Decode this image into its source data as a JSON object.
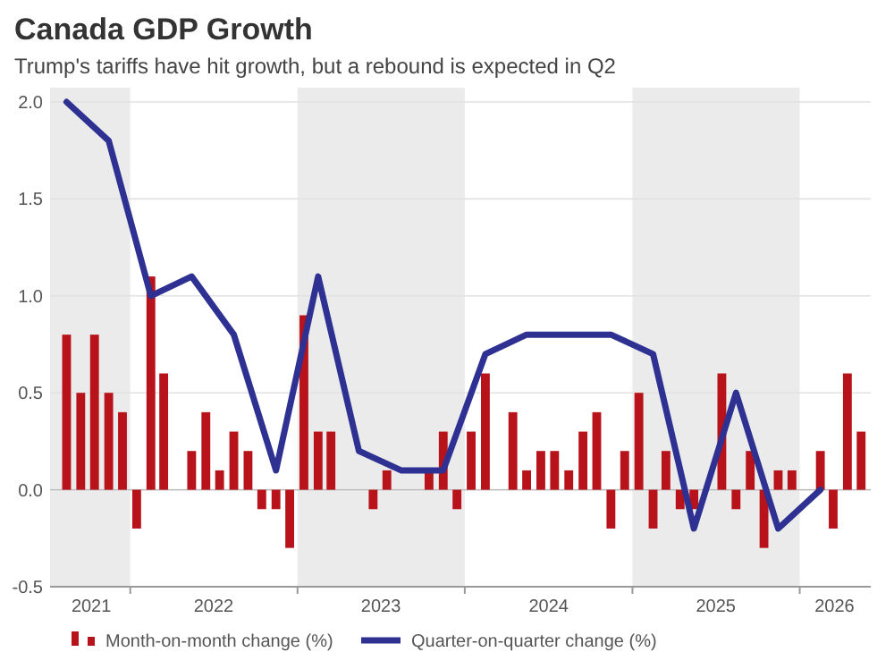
{
  "chart_data": {
    "type": "bar",
    "title": "Canada GDP Growth",
    "subtitle": "Trump's tariffs have hit growth, but a rebound is expected in Q2",
    "x": [
      "2021-08-15",
      "2021-09-15",
      "2021-10-15",
      "2021-11-15",
      "2021-12-15",
      "2022-01-15",
      "2022-02-15",
      "2022-03-15",
      "2022-04-15",
      "2022-05-15",
      "2022-06-15",
      "2022-07-15",
      "2022-08-15",
      "2022-09-15",
      "2022-10-15",
      "2022-11-15",
      "2022-12-15",
      "2023-01-15",
      "2023-02-15",
      "2023-03-15",
      "2023-04-15",
      "2023-05-15",
      "2023-06-15",
      "2023-07-15",
      "2023-08-15",
      "2023-09-15",
      "2023-10-15",
      "2023-11-15",
      "2023-12-15",
      "2024-01-15",
      "2024-02-15",
      "2024-03-15",
      "2024-04-15",
      "2024-05-15",
      "2024-06-15",
      "2024-07-15",
      "2024-08-15",
      "2024-09-15",
      "2024-10-15",
      "2024-11-15",
      "2024-12-15",
      "2025-01-15",
      "2025-02-15",
      "2025-03-15",
      "2025-04-15",
      "2025-05-15",
      "2025-06-15",
      "2025-07-15",
      "2025-08-15",
      "2025-09-15",
      "2025-10-15",
      "2025-11-15",
      "2025-12-15",
      "2026-01-15",
      "2026-02-15",
      "2026-03-15",
      "2026-04-15",
      "2026-05-15"
    ],
    "series": [
      {
        "name": "Month-on-month change (%)",
        "color": "#b8121b",
        "values": [
          0.8,
          0.5,
          0.8,
          0.5,
          0.4,
          -0.2,
          1.1,
          0.6,
          0.0,
          0.2,
          0.4,
          0.1,
          0.3,
          0.2,
          -0.1,
          -0.1,
          -0.3,
          0.9,
          0.3,
          0.3,
          0.0,
          0.0,
          -0.1,
          0.1,
          0.0,
          0.0,
          0.1,
          0.3,
          -0.1,
          0.3,
          0.6,
          0.0,
          0.4,
          0.1,
          0.2,
          0.2,
          0.1,
          0.3,
          0.4,
          -0.2,
          0.2,
          0.5,
          -0.2,
          0.2,
          -0.1,
          -0.1,
          0.0,
          0.6,
          -0.1,
          0.2,
          -0.3,
          0.1,
          0.1,
          0.0,
          0.2,
          -0.2,
          0.6,
          0.3
        ]
      },
      {
        "name": "Quarter-on-quarter change (%)",
        "type": "line",
        "color": "#2e3192",
        "x": [
          "2021-08-15",
          "2021-11-15",
          "2022-02-15",
          "2022-05-15",
          "2022-08-15",
          "2022-11-15",
          "2023-02-15",
          "2023-05-15",
          "2023-08-15",
          "2023-11-15",
          "2024-02-15",
          "2024-05-15",
          "2024-08-15",
          "2024-11-15",
          "2025-02-15",
          "2025-05-15",
          "2025-08-15",
          "2025-11-15",
          "2026-02-15"
        ],
        "values": [
          2.0,
          1.8,
          1.0,
          1.1,
          0.8,
          0.1,
          1.1,
          0.2,
          0.1,
          0.1,
          0.7,
          0.8,
          0.8,
          0.8,
          0.7,
          -0.2,
          0.5,
          -0.2,
          0.0
        ]
      }
    ],
    "xlim": [
      "2021-07-10",
      "2026-06-05"
    ],
    "xticks": [
      {
        "value": "2021-10-08",
        "label": "2021"
      },
      {
        "value": "2022-01-01",
        "label": null
      },
      {
        "value": "2022-07-02",
        "label": "2022"
      },
      {
        "value": "2023-01-01",
        "label": null
      },
      {
        "value": "2023-07-02",
        "label": "2023"
      },
      {
        "value": "2024-01-01",
        "label": null
      },
      {
        "value": "2024-07-02",
        "label": "2024"
      },
      {
        "value": "2025-01-01",
        "label": null
      },
      {
        "value": "2025-07-02",
        "label": "2025"
      },
      {
        "value": "2026-01-01",
        "label": null
      },
      {
        "value": "2026-03-18",
        "label": "2026"
      }
    ],
    "ylim": [
      -0.5,
      2.0
    ],
    "yticks": [
      {
        "value": -0.5,
        "label": "-0.5"
      },
      {
        "value": 0,
        "label": "0.0"
      },
      {
        "value": 0.5,
        "label": "0.5"
      },
      {
        "value": 1,
        "label": "1.0"
      },
      {
        "value": 1.5,
        "label": "1.5"
      },
      {
        "value": 2,
        "label": "2.0"
      }
    ],
    "bands": [
      {
        "axis": "x",
        "from": "2021-07-10",
        "to": "2022-01-01",
        "color": "#ebebeb"
      },
      {
        "axis": "x",
        "from": "2023-01-01",
        "to": "2024-01-01",
        "color": "#ebebeb"
      },
      {
        "axis": "x",
        "from": "2025-01-01",
        "to": "2026-01-01",
        "color": "#ebebeb"
      }
    ],
    "grid": "y",
    "legend": "bottom"
  }
}
